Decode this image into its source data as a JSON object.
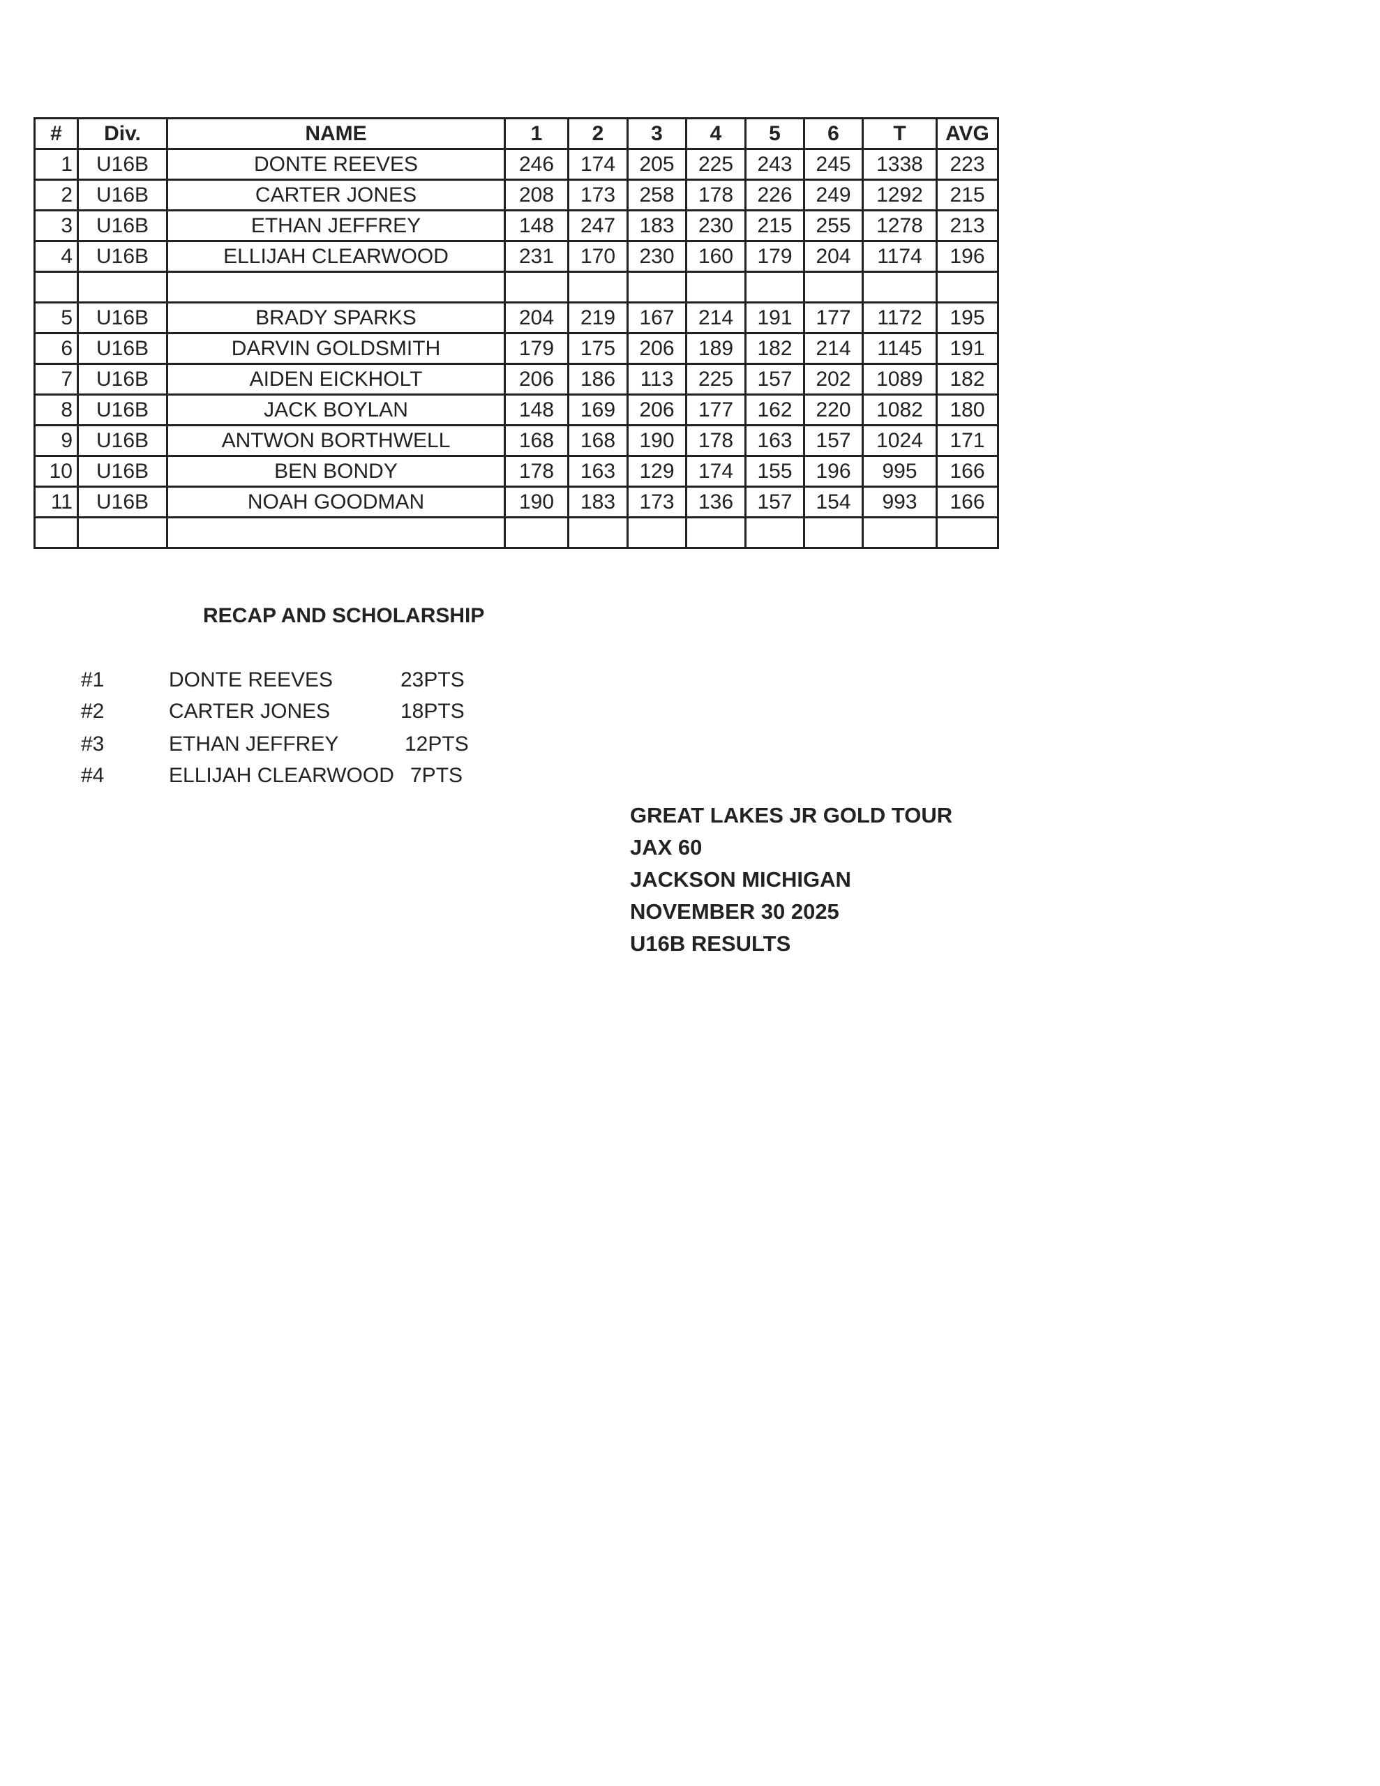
{
  "table": {
    "headers": [
      "#",
      "Div.",
      "NAME",
      "1",
      "2",
      "3",
      "4",
      "5",
      "6",
      "T",
      "AVG"
    ],
    "rows": [
      [
        "1",
        "U16B",
        "DONTE REEVES",
        "246",
        "174",
        "205",
        "225",
        "243",
        "245",
        "1338",
        "223"
      ],
      [
        "2",
        "U16B",
        "CARTER JONES",
        "208",
        "173",
        "258",
        "178",
        "226",
        "249",
        "1292",
        "215"
      ],
      [
        "3",
        "U16B",
        "ETHAN JEFFREY",
        "148",
        "247",
        "183",
        "230",
        "215",
        "255",
        "1278",
        "213"
      ],
      [
        "4",
        "U16B",
        "ELLIJAH CLEARWOOD",
        "231",
        "170",
        "230",
        "160",
        "179",
        "204",
        "1174",
        "196"
      ],
      [
        "",
        "",
        "",
        "",
        "",
        "",
        "",
        "",
        "",
        "",
        ""
      ],
      [
        "5",
        "U16B",
        "BRADY SPARKS",
        "204",
        "219",
        "167",
        "214",
        "191",
        "177",
        "1172",
        "195"
      ],
      [
        "6",
        "U16B",
        "DARVIN GOLDSMITH",
        "179",
        "175",
        "206",
        "189",
        "182",
        "214",
        "1145",
        "191"
      ],
      [
        "7",
        "U16B",
        "AIDEN EICKHOLT",
        "206",
        "186",
        "113",
        "225",
        "157",
        "202",
        "1089",
        "182"
      ],
      [
        "8",
        "U16B",
        "JACK BOYLAN",
        "148",
        "169",
        "206",
        "177",
        "162",
        "220",
        "1082",
        "180"
      ],
      [
        "9",
        "U16B",
        "ANTWON BORTHWELL",
        "168",
        "168",
        "190",
        "178",
        "163",
        "157",
        "1024",
        "171"
      ],
      [
        "10",
        "U16B",
        "BEN BONDY",
        "178",
        "163",
        "129",
        "174",
        "155",
        "196",
        "995",
        "166"
      ],
      [
        "11",
        "U16B",
        "NOAH GOODMAN",
        "190",
        "183",
        "173",
        "136",
        "157",
        "154",
        "993",
        "166"
      ],
      [
        "",
        "",
        "",
        "",
        "",
        "",
        "",
        "",
        "",
        "",
        ""
      ]
    ]
  },
  "recap": {
    "title": "RECAP AND SCHOLARSHIP",
    "items": [
      {
        "rank": "#1",
        "name": "DONTE REEVES",
        "points": "23PTS"
      },
      {
        "rank": "#2",
        "name": "CARTER JONES",
        "points": "18PTS"
      },
      {
        "rank": "#3",
        "name": "ETHAN JEFFREY",
        "points": "12PTS"
      },
      {
        "rank": "#4",
        "name": "ELLIJAH CLEARWOOD",
        "points": "7PTS"
      }
    ]
  },
  "event": {
    "lines": [
      "GREAT LAKES JR GOLD TOUR",
      "JAX 60",
      "JACKSON MICHIGAN",
      "NOVEMBER 30 2025",
      "U16B RESULTS"
    ]
  }
}
